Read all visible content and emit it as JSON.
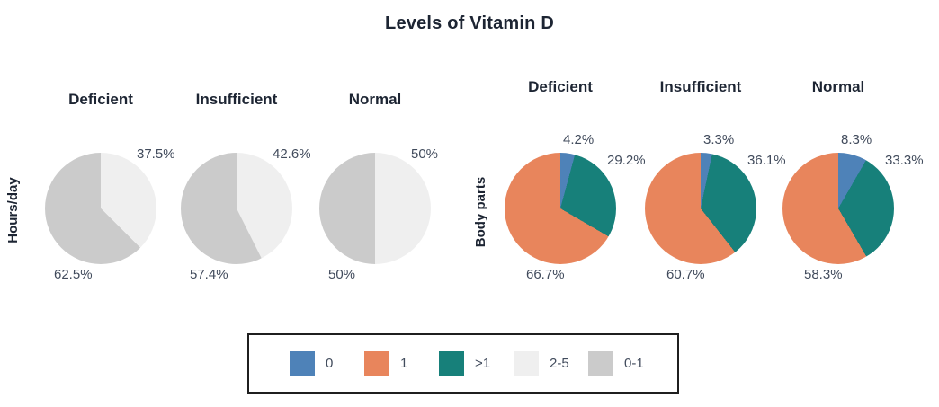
{
  "chart_data": {
    "type": "pie",
    "title": "Levels of Vitamin D",
    "legend": {
      "position": "bottom",
      "entries": [
        {
          "label": "0",
          "color": "#4e82b8"
        },
        {
          "label": "1",
          "color": "#e8855c"
        },
        {
          "label": ">1",
          "color": "#17807a"
        },
        {
          "label": "2-5",
          "color": "#efefef"
        },
        {
          "label": "0-1",
          "color": "#cbcbcb"
        }
      ]
    },
    "groups": [
      {
        "row_label": "Hours/day",
        "pies": [
          {
            "title": "Deficient",
            "slices": [
              {
                "series": "2-5",
                "value": 37.5,
                "label": "37.5%",
                "label_pos": "upper-right"
              },
              {
                "series": "0-1",
                "value": 62.5,
                "label": "62.5%",
                "label_pos": "lower-left"
              }
            ]
          },
          {
            "title": "Insufficient",
            "slices": [
              {
                "series": "2-5",
                "value": 42.6,
                "label": "42.6%",
                "label_pos": "upper-right"
              },
              {
                "series": "0-1",
                "value": 57.4,
                "label": "57.4%",
                "label_pos": "lower-left"
              }
            ]
          },
          {
            "title": "Normal",
            "slices": [
              {
                "series": "2-5",
                "value": 50,
                "label": "50%",
                "label_pos": "upper-right"
              },
              {
                "series": "0-1",
                "value": 50,
                "label": "50%",
                "label_pos": "lower-left"
              }
            ]
          }
        ]
      },
      {
        "row_label": "Body parts",
        "pies": [
          {
            "title": "Deficient",
            "slices": [
              {
                "series": "0",
                "value": 4.2,
                "label": "4.2%",
                "label_pos": "top"
              },
              {
                "series": ">1",
                "value": 29.2,
                "label": "29.2%",
                "label_pos": "right"
              },
              {
                "series": "1",
                "value": 66.7,
                "label": "66.7%",
                "label_pos": "lower-left-near"
              }
            ]
          },
          {
            "title": "Insufficient",
            "slices": [
              {
                "series": "0",
                "value": 3.3,
                "label": "3.3%",
                "label_pos": "top"
              },
              {
                "series": ">1",
                "value": 36.1,
                "label": "36.1%",
                "label_pos": "right"
              },
              {
                "series": "1",
                "value": 60.7,
                "label": "60.7%",
                "label_pos": "lower-left-near"
              }
            ]
          },
          {
            "title": "Normal",
            "slices": [
              {
                "series": "0",
                "value": 8.3,
                "label": "8.3%",
                "label_pos": "top"
              },
              {
                "series": ">1",
                "value": 33.3,
                "label": "33.3%",
                "label_pos": "right"
              },
              {
                "series": "1",
                "value": 58.3,
                "label": "58.3%",
                "label_pos": "lower-left-near"
              }
            ]
          }
        ]
      }
    ]
  }
}
